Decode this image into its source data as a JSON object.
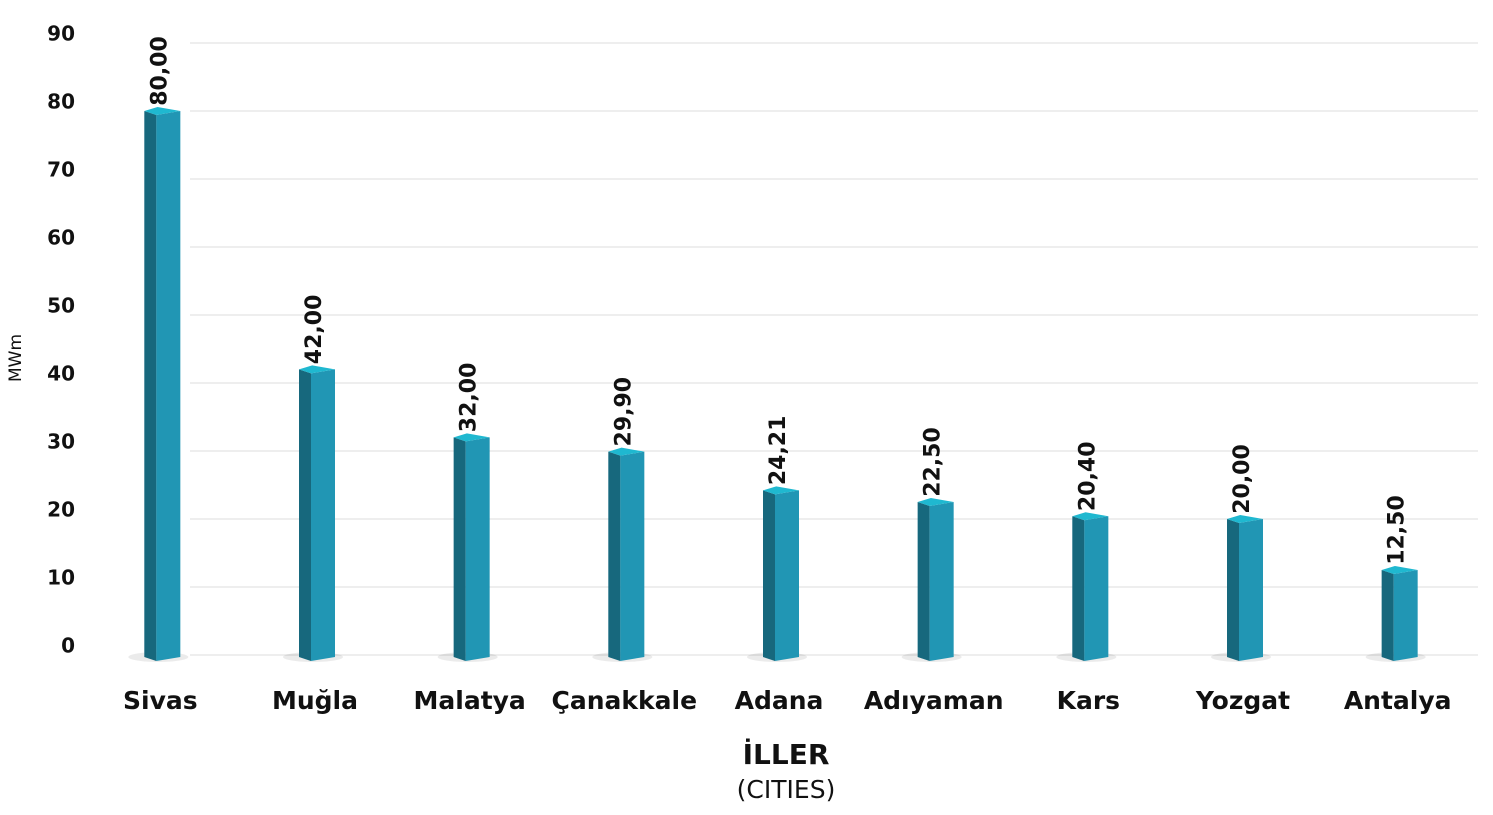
{
  "chart_data": {
    "type": "bar",
    "y_label": "MWm",
    "x_label": "İLLER",
    "x_sublabel": "(CITIES)",
    "categories": [
      "Sivas",
      "Muğla",
      "Malatya",
      "Çanakkale",
      "Adana",
      "Adıyaman",
      "Kars",
      "Yozgat",
      "Antalya"
    ],
    "values": [
      80,
      42,
      32,
      29.9,
      24.21,
      22.5,
      20.4,
      20,
      12.5
    ],
    "value_labels": [
      "80,00",
      "42,00",
      "32,00",
      "29,90",
      "24,21",
      "22,50",
      "20,40",
      "20,00",
      "12,50"
    ],
    "color": "#2196b4",
    "ylim": [
      0,
      90
    ],
    "yticks": [
      0,
      10,
      20,
      30,
      40,
      50,
      60,
      70,
      80,
      90
    ],
    "grid": true
  }
}
